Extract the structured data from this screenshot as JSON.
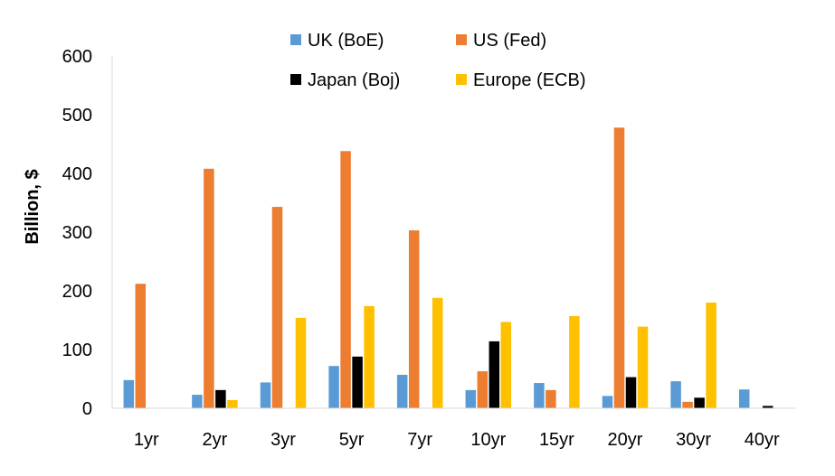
{
  "chart_data": {
    "type": "bar",
    "title": "",
    "xlabel": "",
    "ylabel": "Billion, $",
    "ylim": [
      0,
      600
    ],
    "yticks": [
      0,
      100,
      200,
      300,
      400,
      500,
      600
    ],
    "grid": false,
    "legend_position": "top",
    "categories": [
      "1yr",
      "2yr",
      "3yr",
      "5yr",
      "7yr",
      "10yr",
      "15yr",
      "20yr",
      "30yr",
      "40yr"
    ],
    "series": [
      {
        "name": "UK (BoE)",
        "color": "#5B9BD5",
        "values": [
          48,
          23,
          44,
          72,
          57,
          31,
          43,
          21,
          46,
          32
        ]
      },
      {
        "name": "US (Fed)",
        "color": "#ED7D31",
        "values": [
          212,
          408,
          343,
          438,
          303,
          63,
          31,
          478,
          11,
          0
        ]
      },
      {
        "name": "Japan (Boj)",
        "color": "#000000",
        "values": [
          0,
          31,
          0,
          88,
          0,
          114,
          0,
          53,
          18,
          4
        ]
      },
      {
        "name": "Europe (ECB)",
        "color": "#FFC000",
        "values": [
          0,
          14,
          154,
          174,
          188,
          147,
          157,
          139,
          180,
          0
        ]
      }
    ]
  }
}
